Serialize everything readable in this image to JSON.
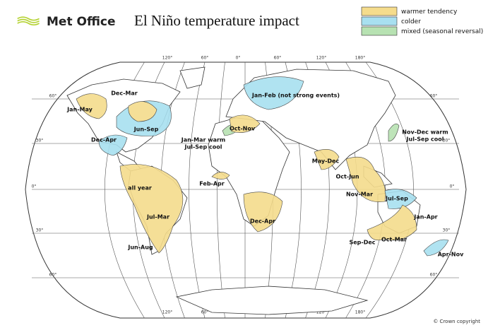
{
  "header": {
    "logo": "Met Office",
    "title": "El Niño temperature impact"
  },
  "legend": [
    {
      "label": "warmer tendency",
      "color": "#f5dc8c"
    },
    {
      "label": "colder",
      "color": "#a8e0f0"
    },
    {
      "label": "mixed (seasonal reversal)",
      "color": "#b7e2b2"
    }
  ],
  "graticule": {
    "longitudes": [
      "120°",
      "60°",
      "0°",
      "60°",
      "120°",
      "180°"
    ],
    "latitudes": [
      "60°",
      "30°",
      "0°",
      "30°",
      "60°"
    ]
  },
  "regions": [
    "Jan-May",
    "Dec-Mar",
    "Jun-Sep",
    "Dec-Apr",
    "all year",
    "Jul-Mar",
    "Jun-Aug",
    "Feb-Apr",
    "Jan-Mar warm",
    "Jul-Sep cool",
    "Oct-Nov",
    "Jan-Feb (not strong events)",
    "Dec-Apr",
    "May-Dec",
    "Oct-Jun",
    "Nov-Mar",
    "Jul-Sep",
    "Jan-Apr",
    "Sep-Dec",
    "Oct-Mar",
    "Apr-Nov",
    "Nov-Dec warm",
    "Jul-Sep cool"
  ],
  "copyright": "© Crown copyright"
}
